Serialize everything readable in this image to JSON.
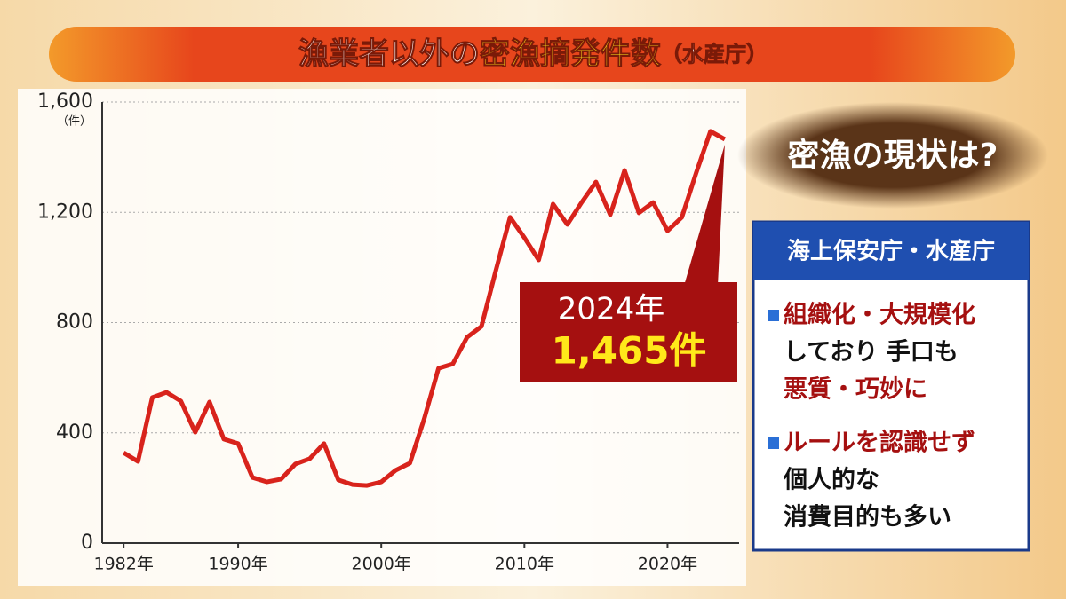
{
  "chart_data": {
    "type": "line",
    "title": [
      "漁業者以外の",
      "密漁摘発件数",
      "（水産庁）"
    ],
    "y_unit": "（件）",
    "x": [
      1982,
      1983,
      1984,
      1985,
      1986,
      1987,
      1988,
      1989,
      1990,
      1991,
      1992,
      1993,
      1994,
      1995,
      1996,
      1997,
      1998,
      1999,
      2000,
      2001,
      2002,
      2003,
      2004,
      2005,
      2006,
      2007,
      2008,
      2009,
      2010,
      2011,
      2012,
      2013,
      2014,
      2015,
      2016,
      2017,
      2018,
      2019,
      2020,
      2021,
      2022,
      2023,
      2024
    ],
    "values": [
      328,
      296,
      528,
      547,
      515,
      402,
      512,
      377,
      361,
      238,
      222,
      232,
      287,
      306,
      361,
      229,
      212,
      209,
      222,
      264,
      290,
      451,
      634,
      650,
      747,
      786,
      988,
      1182,
      1108,
      1027,
      1230,
      1156,
      1236,
      1310,
      1191,
      1352,
      1198,
      1236,
      1133,
      1182,
      1343,
      1494,
      1465
    ],
    "value_labels": [
      null,
      null,
      null,
      null,
      null,
      null,
      null,
      null,
      null,
      null,
      null,
      null,
      null,
      null,
      null,
      null,
      null,
      null,
      null,
      null,
      null,
      null,
      null,
      null,
      null,
      null,
      null,
      null,
      null,
      null,
      null,
      null,
      null,
      null,
      null,
      null,
      null,
      null,
      null,
      null,
      null,
      null,
      "1,465件"
    ],
    "callout_label": "2024年",
    "color": "#d8231c",
    "xlim": [
      1980.5,
      2025
    ],
    "xticks": [
      {
        "value": 1982,
        "label": "1982年"
      },
      {
        "value": 1990,
        "label": "1990年"
      },
      {
        "value": 2000,
        "label": "2000年"
      },
      {
        "value": 2010,
        "label": "2010年"
      },
      {
        "value": 2020,
        "label": "2020年"
      }
    ],
    "ylim": [
      0,
      1600
    ],
    "yticks": [
      0,
      400,
      800,
      {
        "value": 1200,
        "label": "1,200"
      },
      {
        "value": 1600,
        "label": "1,600"
      }
    ],
    "grid": true
  },
  "side_panel": {
    "heading": "密漁の現状は?",
    "box_title": "海上保安庁・水産庁",
    "points": [
      {
        "lines": [
          "組織化・大規模化",
          "しており 手口も",
          "悪質・巧妙に"
        ],
        "highlight": [
          true,
          false,
          true
        ]
      },
      {
        "lines": [
          "ルールを認識せず",
          "個人的な",
          "消費目的も多い"
        ],
        "highlight": [
          true,
          false,
          false
        ]
      }
    ]
  }
}
